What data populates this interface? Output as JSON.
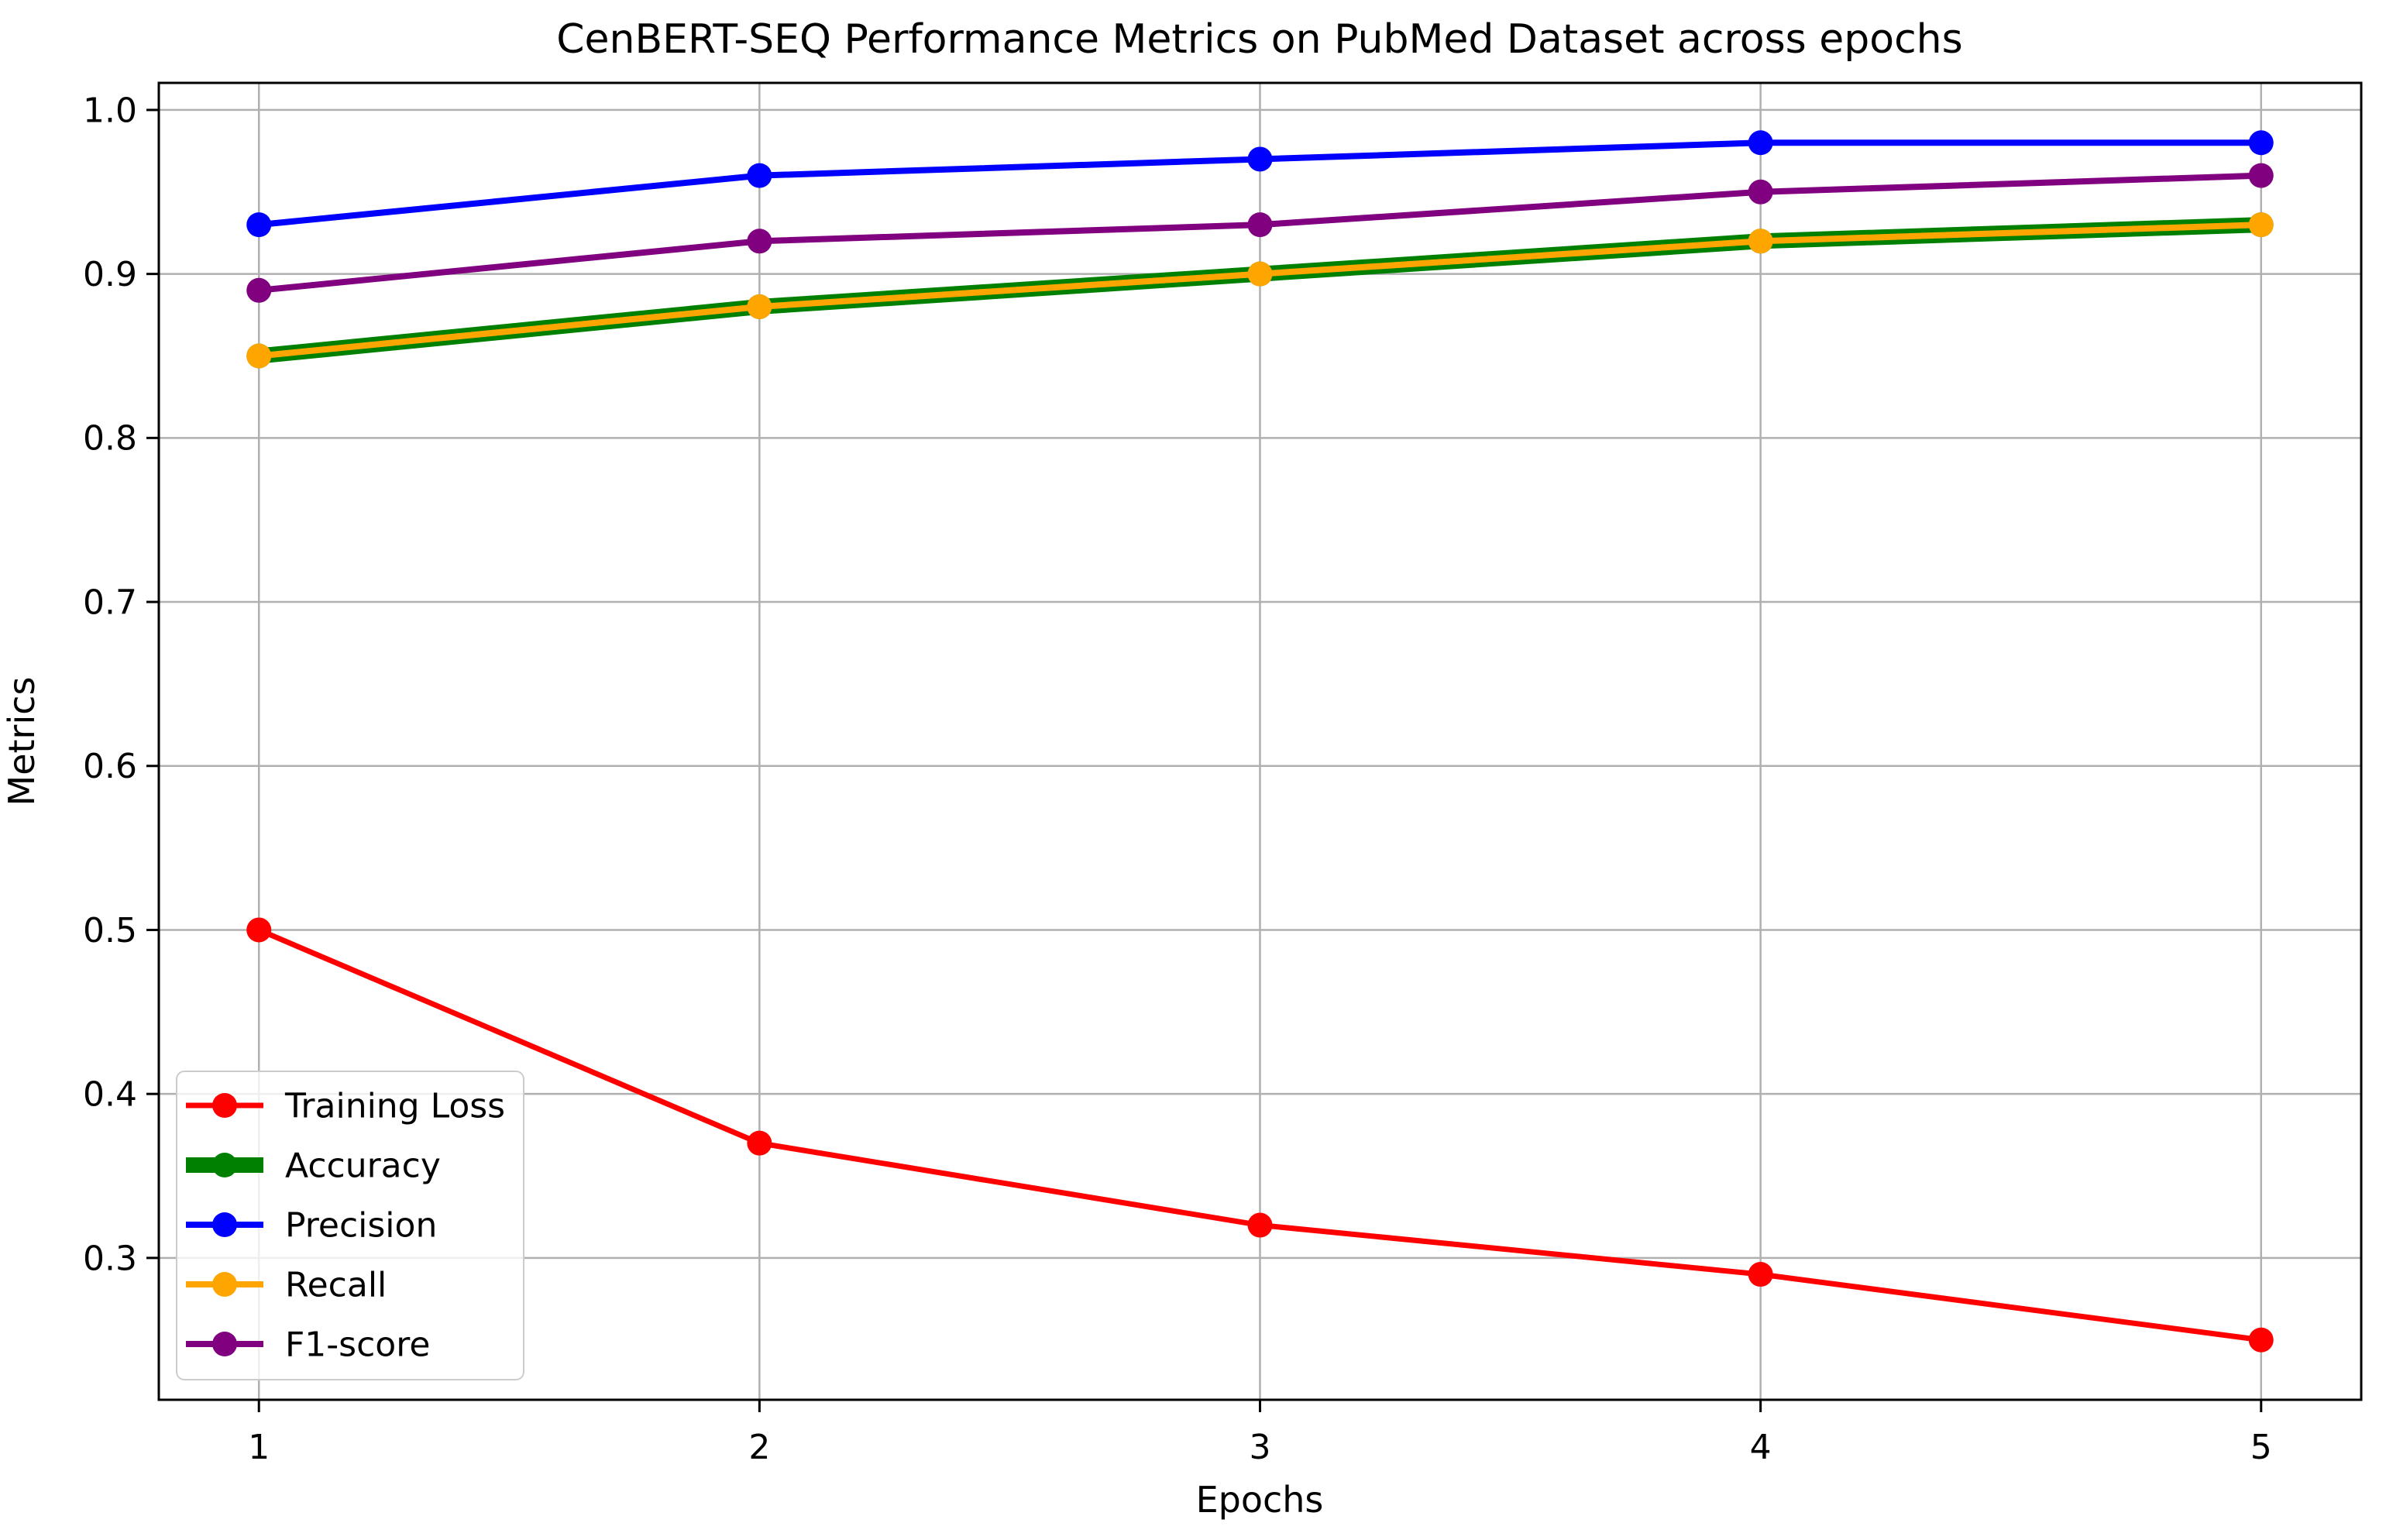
{
  "chart_data": {
    "type": "line",
    "title": "CenBERT-SEQ Performance Metrics on PubMed Dataset across epochs",
    "xlabel": "Epochs",
    "ylabel": "Metrics",
    "x": [
      1,
      2,
      3,
      4,
      5
    ],
    "series": [
      {
        "name": "Training Loss",
        "color": "#FF0000",
        "line_width": 7,
        "marker_radius": 16,
        "values": [
          0.5,
          0.37,
          0.32,
          0.29,
          0.25
        ]
      },
      {
        "name": "Accuracy",
        "color": "#008000",
        "line_width": 20,
        "marker_radius": 16,
        "values": [
          0.85,
          0.88,
          0.9,
          0.92,
          0.93
        ]
      },
      {
        "name": "Precision",
        "color": "#0000FF",
        "line_width": 8,
        "marker_radius": 16,
        "values": [
          0.93,
          0.96,
          0.97,
          0.98,
          0.98
        ]
      },
      {
        "name": "Recall",
        "color": "#FFA500",
        "line_width": 8,
        "marker_radius": 16,
        "values": [
          0.85,
          0.88,
          0.9,
          0.92,
          0.93
        ]
      },
      {
        "name": "F1-score",
        "color": "#800080",
        "line_width": 8,
        "marker_radius": 16,
        "values": [
          0.89,
          0.92,
          0.93,
          0.95,
          0.96
        ]
      }
    ],
    "xticks": {
      "values": [
        1,
        2,
        3,
        4,
        5
      ],
      "labels": [
        "1",
        "2",
        "3",
        "4",
        "5"
      ]
    },
    "yticks": {
      "values": [
        0.3,
        0.4,
        0.5,
        0.6,
        0.7,
        0.8,
        0.9,
        1.0
      ],
      "labels": [
        "0.3",
        "0.4",
        "0.5",
        "0.6",
        "0.7",
        "0.8",
        "0.9",
        "1.0"
      ]
    },
    "xlim": [
      0.8,
      5.2
    ],
    "ylim": [
      0.2135,
      1.0165
    ],
    "grid": true,
    "legend": {
      "position": "lower left",
      "entries": [
        "Training Loss",
        "Accuracy",
        "Precision",
        "Recall",
        "F1-score"
      ]
    },
    "colors": {
      "background": "#FFFFFF",
      "grid": "#B0B0B0",
      "axis": "#000000",
      "text": "#000000",
      "legend_border": "#CCCCCC",
      "legend_fill": "rgba(255,255,255,0.8)"
    }
  }
}
